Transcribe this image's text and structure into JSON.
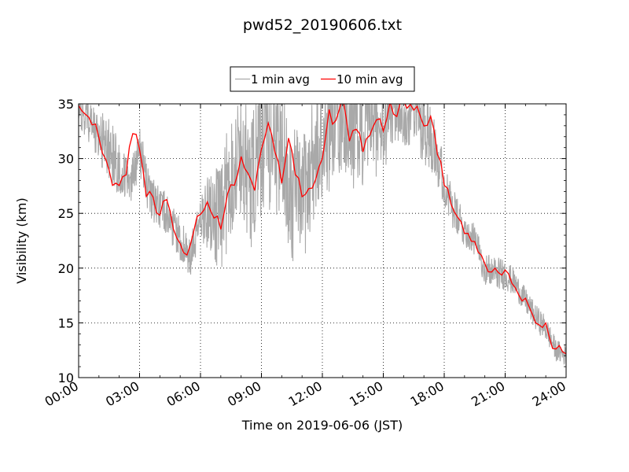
{
  "chart_data": {
    "type": "line",
    "title": "pwd52_20190606.txt",
    "xlabel": "Time on 2019-06-06 (JST)",
    "ylabel": "Visibility (km)",
    "xlim": [
      "00:00",
      "24:00"
    ],
    "ylim": [
      10,
      35
    ],
    "xticks": [
      "00:00",
      "03:00",
      "06:00",
      "09:00",
      "12:00",
      "15:00",
      "18:00",
      "21:00",
      "24:00"
    ],
    "yticks": [
      10,
      15,
      20,
      25,
      30,
      35
    ],
    "grid": "dotted",
    "legend_position": "top-center",
    "series": [
      {
        "name": "1 min avg",
        "color": "#a9a9a9",
        "x": [
          "00:00",
          "00:30",
          "01:00",
          "01:30",
          "02:00",
          "02:30",
          "03:00",
          "03:30",
          "04:00",
          "04:30",
          "05:00",
          "05:30",
          "06:00",
          "06:30",
          "07:00",
          "07:30",
          "08:00",
          "08:30",
          "09:00",
          "09:30",
          "10:00",
          "10:30",
          "11:00",
          "11:30",
          "12:00",
          "12:30",
          "13:00",
          "13:30",
          "14:00",
          "14:30",
          "15:00",
          "15:30",
          "16:00",
          "16:30",
          "17:00",
          "17:30",
          "18:00",
          "18:30",
          "19:00",
          "19:30",
          "20:00",
          "20:30",
          "21:00",
          "21:30",
          "22:00",
          "22:30",
          "23:00",
          "23:30",
          "24:00"
        ],
        "values": [
          34.5,
          33.5,
          32.0,
          31.0,
          29.0,
          27.5,
          31.0,
          26.5,
          25.5,
          24.5,
          22.5,
          20.8,
          24.5,
          25.5,
          24.0,
          29.0,
          30.5,
          27.5,
          31.0,
          32.0,
          30.5,
          27.0,
          26.0,
          29.5,
          31.0,
          34.0,
          34.5,
          33.0,
          32.5,
          33.5,
          32.0,
          34.5,
          34.0,
          34.5,
          33.0,
          32.0,
          27.5,
          25.0,
          23.5,
          22.5,
          20.0,
          19.5,
          19.5,
          18.5,
          17.0,
          15.5,
          14.5,
          12.5,
          12.0
        ],
        "spread": [
          1.5,
          2.0,
          2.5,
          3.0,
          2.5,
          2.0,
          2.5,
          2.0,
          2.0,
          2.0,
          2.0,
          2.0,
          2.0,
          4.0,
          5.0,
          6.0,
          6.0,
          6.0,
          6.5,
          6.5,
          6.5,
          6.5,
          6.0,
          6.0,
          6.5,
          6.0,
          6.0,
          6.0,
          6.0,
          5.0,
          4.0,
          3.0,
          3.0,
          3.5,
          3.5,
          3.5,
          2.0,
          2.0,
          1.5,
          1.5,
          1.5,
          1.5,
          1.5,
          1.2,
          1.2,
          1.2,
          1.2,
          1.0,
          1.0
        ]
      },
      {
        "name": "10 min avg",
        "color": "#ff0000",
        "x": [
          "00:00",
          "00:20",
          "00:40",
          "01:00",
          "01:20",
          "01:40",
          "02:00",
          "02:20",
          "02:40",
          "03:00",
          "03:20",
          "03:40",
          "04:00",
          "04:20",
          "04:40",
          "05:00",
          "05:20",
          "05:40",
          "06:00",
          "06:20",
          "06:40",
          "07:00",
          "07:20",
          "07:40",
          "08:00",
          "08:20",
          "08:40",
          "09:00",
          "09:20",
          "09:40",
          "10:00",
          "10:20",
          "10:40",
          "11:00",
          "11:20",
          "11:40",
          "12:00",
          "12:20",
          "12:40",
          "13:00",
          "13:20",
          "13:40",
          "14:00",
          "14:20",
          "14:40",
          "15:00",
          "15:20",
          "15:40",
          "16:00",
          "16:20",
          "16:40",
          "17:00",
          "17:20",
          "17:40",
          "18:00",
          "18:20",
          "18:40",
          "19:00",
          "19:20",
          "19:40",
          "20:00",
          "20:20",
          "20:40",
          "21:00",
          "21:20",
          "21:40",
          "22:00",
          "22:20",
          "22:40",
          "23:00",
          "23:20",
          "23:40",
          "24:00"
        ],
        "values": [
          35.0,
          34.0,
          33.5,
          32.0,
          30.0,
          28.0,
          27.5,
          29.0,
          32.5,
          31.0,
          27.0,
          26.0,
          25.0,
          26.5,
          23.5,
          22.5,
          21.0,
          23.5,
          25.0,
          26.0,
          25.0,
          24.0,
          26.5,
          28.0,
          30.0,
          29.0,
          27.5,
          31.0,
          33.0,
          30.5,
          28.0,
          32.0,
          29.0,
          26.5,
          27.5,
          28.0,
          30.5,
          34.0,
          33.0,
          35.5,
          32.0,
          33.0,
          31.0,
          32.5,
          34.0,
          33.0,
          35.0,
          34.0,
          35.5,
          34.5,
          34.5,
          33.0,
          34.0,
          30.5,
          28.0,
          26.0,
          24.5,
          23.5,
          22.5,
          21.5,
          20.0,
          19.8,
          20.0,
          19.5,
          18.5,
          17.5,
          17.0,
          15.5,
          15.0,
          14.5,
          13.0,
          12.5,
          12.2
        ]
      }
    ]
  }
}
